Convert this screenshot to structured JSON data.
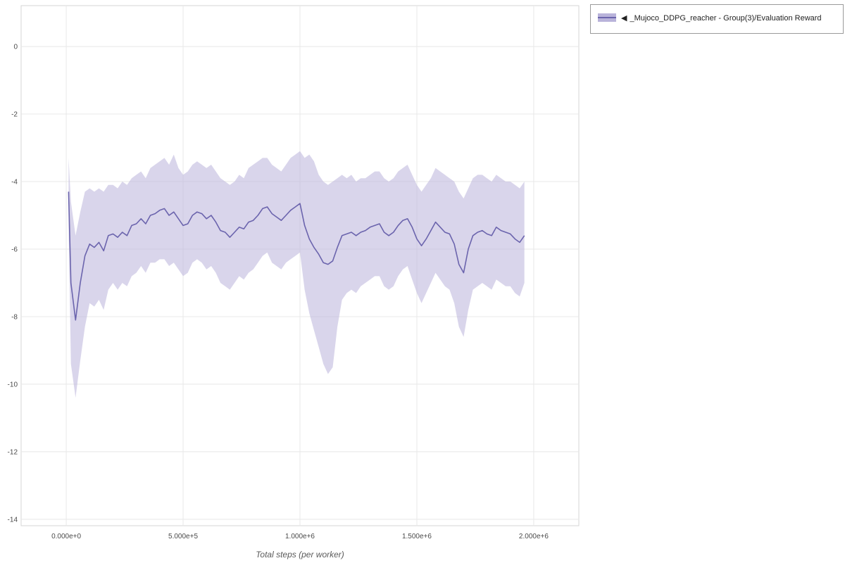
{
  "chart_data": {
    "type": "line",
    "title": "",
    "xlabel": "Total steps (per worker)",
    "ylabel": "",
    "xlim": [
      -193000,
      2193000
    ],
    "ylim": [
      -14.19,
      1.21
    ],
    "grid": true,
    "x_ticks": {
      "values": [
        0,
        500000,
        1000000,
        1500000,
        2000000
      ],
      "labels": [
        "0.000e+0",
        "5.000e+5",
        "1.000e+6",
        "1.500e+6",
        "2.000e+6"
      ]
    },
    "y_ticks": {
      "values": [
        0,
        -2,
        -4,
        -6,
        -8,
        -10,
        -12,
        -14
      ],
      "labels": [
        "0",
        "-2",
        "-4",
        "-6",
        "-8",
        "-10",
        "-12",
        "-14"
      ]
    },
    "legend": {
      "position": "top-right",
      "entries": [
        {
          "collapse_icon": "◀",
          "label": "_Mujoco_DDPG_reacher - Group(3)/Evaluation Reward"
        }
      ]
    },
    "colors": {
      "line": "#6b64ad",
      "band": "#b9b3da",
      "grid": "#e8e8e8",
      "plot_border": "#d6d6d6",
      "tick_text": "#4a4a4a",
      "axis_title": "#5a5a5a"
    },
    "series": [
      {
        "name": "_Mujoco_DDPG_reacher - Group(3)/Evaluation Reward",
        "x": [
          10000,
          20000,
          40000,
          60000,
          80000,
          100000,
          120000,
          140000,
          160000,
          180000,
          200000,
          220000,
          240000,
          260000,
          280000,
          300000,
          320000,
          340000,
          360000,
          380000,
          400000,
          420000,
          440000,
          460000,
          480000,
          500000,
          520000,
          540000,
          560000,
          580000,
          600000,
          620000,
          640000,
          660000,
          680000,
          700000,
          720000,
          740000,
          760000,
          780000,
          800000,
          820000,
          840000,
          860000,
          880000,
          900000,
          920000,
          940000,
          960000,
          980000,
          1000000,
          1020000,
          1040000,
          1060000,
          1080000,
          1100000,
          1120000,
          1140000,
          1160000,
          1180000,
          1200000,
          1220000,
          1240000,
          1260000,
          1280000,
          1300000,
          1320000,
          1340000,
          1360000,
          1380000,
          1400000,
          1420000,
          1440000,
          1460000,
          1480000,
          1500000,
          1520000,
          1540000,
          1560000,
          1580000,
          1600000,
          1620000,
          1640000,
          1660000,
          1680000,
          1700000,
          1720000,
          1740000,
          1760000,
          1780000,
          1800000,
          1820000,
          1840000,
          1860000,
          1880000,
          1900000,
          1920000,
          1940000,
          1960000
        ],
        "mean": [
          -4.3,
          -7.0,
          -8.1,
          -7.0,
          -6.2,
          -5.85,
          -5.95,
          -5.8,
          -6.05,
          -5.6,
          -5.55,
          -5.65,
          -5.5,
          -5.6,
          -5.3,
          -5.25,
          -5.1,
          -5.25,
          -5.0,
          -4.95,
          -4.85,
          -4.8,
          -5.0,
          -4.9,
          -5.1,
          -5.3,
          -5.25,
          -5.0,
          -4.9,
          -4.95,
          -5.1,
          -5.0,
          -5.2,
          -5.45,
          -5.5,
          -5.65,
          -5.5,
          -5.35,
          -5.4,
          -5.2,
          -5.15,
          -5.0,
          -4.8,
          -4.75,
          -4.95,
          -5.05,
          -5.15,
          -5.0,
          -4.85,
          -4.75,
          -4.65,
          -5.3,
          -5.7,
          -5.95,
          -6.15,
          -6.4,
          -6.45,
          -6.35,
          -5.95,
          -5.6,
          -5.55,
          -5.5,
          -5.6,
          -5.5,
          -5.45,
          -5.35,
          -5.3,
          -5.25,
          -5.5,
          -5.6,
          -5.5,
          -5.3,
          -5.15,
          -5.1,
          -5.35,
          -5.7,
          -5.9,
          -5.7,
          -5.45,
          -5.2,
          -5.35,
          -5.5,
          -5.55,
          -5.85,
          -6.45,
          -6.7,
          -6.0,
          -5.6,
          -5.5,
          -5.45,
          -5.55,
          -5.6,
          -5.35,
          -5.45,
          -5.5,
          -5.55,
          -5.7,
          -5.8,
          -5.6
        ],
        "band_upper": [
          -3.3,
          -4.6,
          -5.6,
          -4.9,
          -4.3,
          -4.2,
          -4.3,
          -4.2,
          -4.3,
          -4.1,
          -4.1,
          -4.2,
          -4.0,
          -4.1,
          -3.9,
          -3.8,
          -3.7,
          -3.9,
          -3.6,
          -3.5,
          -3.4,
          -3.3,
          -3.5,
          -3.2,
          -3.6,
          -3.8,
          -3.7,
          -3.5,
          -3.4,
          -3.5,
          -3.6,
          -3.5,
          -3.7,
          -3.9,
          -4.0,
          -4.1,
          -4.0,
          -3.8,
          -3.9,
          -3.6,
          -3.5,
          -3.4,
          -3.3,
          -3.3,
          -3.5,
          -3.6,
          -3.7,
          -3.5,
          -3.3,
          -3.2,
          -3.1,
          -3.3,
          -3.2,
          -3.4,
          -3.8,
          -4.0,
          -4.1,
          -4.0,
          -3.9,
          -3.8,
          -3.9,
          -3.8,
          -4.0,
          -3.9,
          -3.9,
          -3.8,
          -3.7,
          -3.7,
          -3.9,
          -4.0,
          -3.9,
          -3.7,
          -3.6,
          -3.5,
          -3.8,
          -4.1,
          -4.3,
          -4.1,
          -3.9,
          -3.6,
          -3.7,
          -3.8,
          -3.9,
          -4.0,
          -4.3,
          -4.5,
          -4.2,
          -3.9,
          -3.8,
          -3.8,
          -3.9,
          -4.0,
          -3.8,
          -3.9,
          -4.0,
          -4.0,
          -4.1,
          -4.2,
          -4.0
        ],
        "band_lower": [
          -5.3,
          -9.4,
          -10.4,
          -9.3,
          -8.3,
          -7.6,
          -7.7,
          -7.5,
          -7.8,
          -7.2,
          -7.0,
          -7.2,
          -7.0,
          -7.1,
          -6.8,
          -6.7,
          -6.5,
          -6.7,
          -6.4,
          -6.4,
          -6.3,
          -6.3,
          -6.5,
          -6.4,
          -6.6,
          -6.8,
          -6.7,
          -6.4,
          -6.3,
          -6.4,
          -6.6,
          -6.5,
          -6.7,
          -7.0,
          -7.1,
          -7.2,
          -7.0,
          -6.8,
          -6.9,
          -6.7,
          -6.6,
          -6.4,
          -6.2,
          -6.1,
          -6.4,
          -6.5,
          -6.6,
          -6.4,
          -6.3,
          -6.2,
          -6.1,
          -7.2,
          -7.9,
          -8.4,
          -8.9,
          -9.4,
          -9.7,
          -9.5,
          -8.3,
          -7.5,
          -7.3,
          -7.2,
          -7.3,
          -7.1,
          -7.0,
          -6.9,
          -6.8,
          -6.8,
          -7.1,
          -7.2,
          -7.1,
          -6.8,
          -6.6,
          -6.5,
          -6.9,
          -7.3,
          -7.6,
          -7.3,
          -7.0,
          -6.7,
          -6.9,
          -7.1,
          -7.2,
          -7.6,
          -8.3,
          -8.6,
          -7.8,
          -7.2,
          -7.1,
          -7.0,
          -7.1,
          -7.2,
          -6.9,
          -7.0,
          -7.1,
          -7.1,
          -7.3,
          -7.4,
          -7.0
        ]
      }
    ]
  }
}
